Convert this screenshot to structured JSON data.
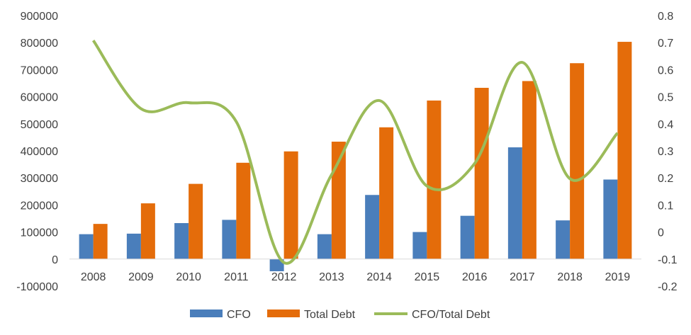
{
  "chart_data": {
    "type": "bar",
    "title": "",
    "xlabel": "",
    "ylabel": "",
    "categories": [
      "2008",
      "2009",
      "2010",
      "2011",
      "2012",
      "2013",
      "2014",
      "2015",
      "2016",
      "2017",
      "2018",
      "2019"
    ],
    "series": [
      {
        "name": "CFO",
        "type": "bar",
        "axis": "left",
        "color": "#4a7ebb",
        "values": [
          92000,
          94000,
          133000,
          145000,
          -45000,
          92000,
          237000,
          100000,
          160000,
          413000,
          143000,
          294000
        ]
      },
      {
        "name": "Total Debt",
        "type": "bar",
        "axis": "left",
        "color": "#e46c0a",
        "values": [
          130000,
          206000,
          278000,
          356000,
          398000,
          434000,
          487000,
          586000,
          633000,
          658000,
          724000,
          803000
        ]
      },
      {
        "name": "CFO/Total Debt",
        "type": "line",
        "axis": "right",
        "color": "#9bbb59",
        "smooth": true,
        "values": [
          0.708,
          0.456,
          0.478,
          0.408,
          -0.113,
          0.212,
          0.486,
          0.17,
          0.253,
          0.627,
          0.197,
          0.366
        ]
      }
    ],
    "y_left": {
      "min": -100000,
      "max": 900000,
      "step": 100000,
      "tick_labels": [
        "-100000",
        "0",
        "100000",
        "200000",
        "300000",
        "400000",
        "500000",
        "600000",
        "700000",
        "800000",
        "900000"
      ]
    },
    "y_right": {
      "min": -0.2,
      "max": 0.8,
      "step": 0.1,
      "tick_labels": [
        "-0.2",
        "-0.1",
        "0",
        "0.1",
        "0.2",
        "0.3",
        "0.4",
        "0.5",
        "0.6",
        "0.7",
        "0.8"
      ]
    },
    "grid": false,
    "legend": {
      "position": "bottom",
      "entries": [
        "CFO",
        "Total Debt",
        "CFO/Total Debt"
      ]
    }
  }
}
